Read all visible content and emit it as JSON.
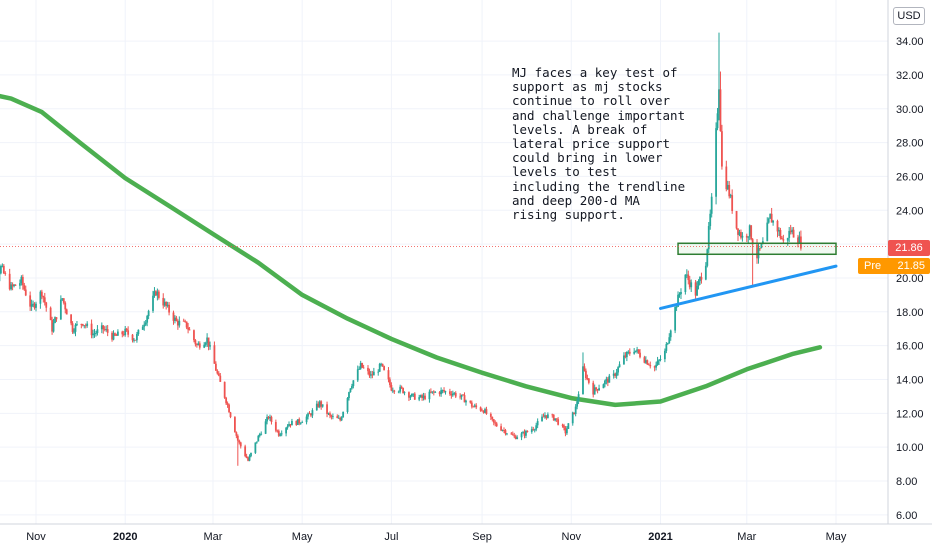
{
  "currency": "USD",
  "last_price": "21.86",
  "premarket_label": "Pre",
  "premarket_price": "21.85",
  "annotation": "MJ faces a key test of support as mj stocks continue to roll over and challenge important levels. A break of lateral price support could bring in lower levels to test including the trendline and deep 200-d MA rising support.",
  "colors": {
    "up": "#26a69a",
    "down": "#ef5350",
    "ma": "#4caf50",
    "trendline": "#2196f3",
    "support_box": "#2e7d32",
    "last_line": "#ef5350",
    "premarket": "#ff9800"
  },
  "chart_data": {
    "type": "candlestick",
    "y_axis": {
      "range": [
        5.4,
        35.6
      ],
      "ticks": [
        "6.00",
        "8.00",
        "10.00",
        "12.00",
        "14.00",
        "16.00",
        "18.00",
        "20.00",
        "22.00",
        "24.00",
        "26.00",
        "28.00",
        "30.00",
        "32.00",
        "34.00"
      ],
      "position": "right"
    },
    "x_axis": {
      "ticks": [
        {
          "label": "Nov",
          "date": "2019-11-01",
          "bold": false
        },
        {
          "label": "2020",
          "date": "2020-01-01",
          "bold": true
        },
        {
          "label": "Mar",
          "date": "2020-03-01",
          "bold": false
        },
        {
          "label": "May",
          "date": "2020-05-01",
          "bold": false
        },
        {
          "label": "Jul",
          "date": "2020-07-01",
          "bold": false
        },
        {
          "label": "Sep",
          "date": "2020-09-01",
          "bold": false
        },
        {
          "label": "Nov",
          "date": "2020-11-01",
          "bold": false
        },
        {
          "label": "2021",
          "date": "2021-01-01",
          "bold": true
        },
        {
          "label": "Mar",
          "date": "2021-03-01",
          "bold": false
        },
        {
          "label": "May",
          "date": "2021-05-01",
          "bold": false
        }
      ]
    },
    "series": [
      {
        "name": "",
        "kind": "close_path",
        "points": [
          [
            "2019-09-24",
            18.4
          ],
          [
            "2019-10-01",
            19.6
          ],
          [
            "2019-10-08",
            20.6
          ],
          [
            "2019-10-15",
            19.4
          ],
          [
            "2019-10-22",
            19.8
          ],
          [
            "2019-10-29",
            18.2
          ],
          [
            "2019-11-05",
            19.2
          ],
          [
            "2019-11-12",
            17.0
          ],
          [
            "2019-11-19",
            18.8
          ],
          [
            "2019-11-26",
            17.0
          ],
          [
            "2019-12-03",
            17.4
          ],
          [
            "2019-12-10",
            16.7
          ],
          [
            "2019-12-17",
            17.0
          ],
          [
            "2019-12-24",
            16.5
          ],
          [
            "2020-01-01",
            16.8
          ],
          [
            "2020-01-08",
            16.4
          ],
          [
            "2020-01-15",
            17.6
          ],
          [
            "2020-01-22",
            19.2
          ],
          [
            "2020-01-29",
            18.3
          ],
          [
            "2020-02-05",
            17.4
          ],
          [
            "2020-02-12",
            17.2
          ],
          [
            "2020-02-19",
            16.0
          ],
          [
            "2020-02-26",
            16.4
          ],
          [
            "2020-03-04",
            14.3
          ],
          [
            "2020-03-11",
            12.5
          ],
          [
            "2020-03-18",
            10.4
          ],
          [
            "2020-03-25",
            9.2
          ],
          [
            "2020-04-01",
            10.6
          ],
          [
            "2020-04-08",
            11.8
          ],
          [
            "2020-04-15",
            10.8
          ],
          [
            "2020-04-22",
            11.4
          ],
          [
            "2020-04-29",
            11.5
          ],
          [
            "2020-05-06",
            11.9
          ],
          [
            "2020-05-13",
            12.6
          ],
          [
            "2020-05-20",
            11.8
          ],
          [
            "2020-05-27",
            11.6
          ],
          [
            "2020-06-03",
            13.6
          ],
          [
            "2020-06-10",
            14.8
          ],
          [
            "2020-06-17",
            14.2
          ],
          [
            "2020-06-24",
            14.8
          ],
          [
            "2020-07-01",
            13.5
          ],
          [
            "2020-07-08",
            13.4
          ],
          [
            "2020-07-15",
            13.0
          ],
          [
            "2020-07-22",
            12.9
          ],
          [
            "2020-07-29",
            13.2
          ],
          [
            "2020-08-05",
            13.3
          ],
          [
            "2020-08-12",
            13.2
          ],
          [
            "2020-08-19",
            12.9
          ],
          [
            "2020-08-26",
            12.4
          ],
          [
            "2020-09-02",
            12.2
          ],
          [
            "2020-09-09",
            11.4
          ],
          [
            "2020-09-16",
            11.0
          ],
          [
            "2020-09-23",
            10.6
          ],
          [
            "2020-09-30",
            10.8
          ],
          [
            "2020-10-07",
            11.2
          ],
          [
            "2020-10-14",
            11.9
          ],
          [
            "2020-10-21",
            11.7
          ],
          [
            "2020-10-28",
            10.9
          ],
          [
            "2020-11-04",
            12.3
          ],
          [
            "2020-11-09",
            14.6
          ],
          [
            "2020-11-16",
            13.3
          ],
          [
            "2020-11-23",
            13.8
          ],
          [
            "2020-11-30",
            14.2
          ],
          [
            "2020-12-07",
            15.3
          ],
          [
            "2020-12-14",
            15.8
          ],
          [
            "2020-12-21",
            15.2
          ],
          [
            "2020-12-28",
            14.7
          ],
          [
            "2021-01-04",
            15.6
          ],
          [
            "2021-01-11",
            18.2
          ],
          [
            "2021-01-18",
            20.2
          ],
          [
            "2021-01-25",
            19.1
          ],
          [
            "2021-02-01",
            21.0
          ],
          [
            "2021-02-05",
            24.5
          ],
          [
            "2021-02-08",
            28.5
          ],
          [
            "2021-02-10",
            31.5
          ],
          [
            "2021-02-12",
            26.5
          ],
          [
            "2021-02-17",
            25.0
          ],
          [
            "2021-02-22",
            23.0
          ],
          [
            "2021-02-26",
            22.4
          ],
          [
            "2021-03-03",
            22.8
          ],
          [
            "2021-03-08",
            21.3
          ],
          [
            "2021-03-12",
            22.0
          ],
          [
            "2021-03-17",
            23.6
          ],
          [
            "2021-03-22",
            22.9
          ],
          [
            "2021-03-26",
            22.1
          ],
          [
            "2021-03-31",
            22.8
          ],
          [
            "2021-04-05",
            22.4
          ],
          [
            "2021-04-08",
            21.86
          ]
        ]
      },
      {
        "name": "200-d MA",
        "kind": "line",
        "points": [
          [
            "2019-09-24",
            31.0
          ],
          [
            "2019-10-15",
            30.6
          ],
          [
            "2019-11-05",
            29.8
          ],
          [
            "2019-12-01",
            28.0
          ],
          [
            "2020-01-01",
            25.9
          ],
          [
            "2020-02-01",
            24.2
          ],
          [
            "2020-03-01",
            22.6
          ],
          [
            "2020-04-01",
            20.9
          ],
          [
            "2020-05-01",
            19.0
          ],
          [
            "2020-06-01",
            17.6
          ],
          [
            "2020-07-01",
            16.4
          ],
          [
            "2020-08-01",
            15.3
          ],
          [
            "2020-09-01",
            14.4
          ],
          [
            "2020-10-01",
            13.6
          ],
          [
            "2020-11-01",
            12.9
          ],
          [
            "2020-12-01",
            12.5
          ],
          [
            "2021-01-01",
            12.7
          ],
          [
            "2021-02-01",
            13.6
          ],
          [
            "2021-03-01",
            14.6
          ],
          [
            "2021-04-01",
            15.5
          ],
          [
            "2021-04-20",
            15.9
          ]
        ]
      },
      {
        "name": "",
        "kind": "trendline",
        "points": [
          [
            "2021-01-01",
            18.2
          ],
          [
            "2021-05-01",
            20.7
          ]
        ]
      }
    ],
    "annotations": {
      "support_zone": {
        "from": "2021-01-13",
        "to": "2021-05-01",
        "low": 21.4,
        "high": 22.05
      },
      "last_price_line": 21.86
    },
    "grid": true
  }
}
